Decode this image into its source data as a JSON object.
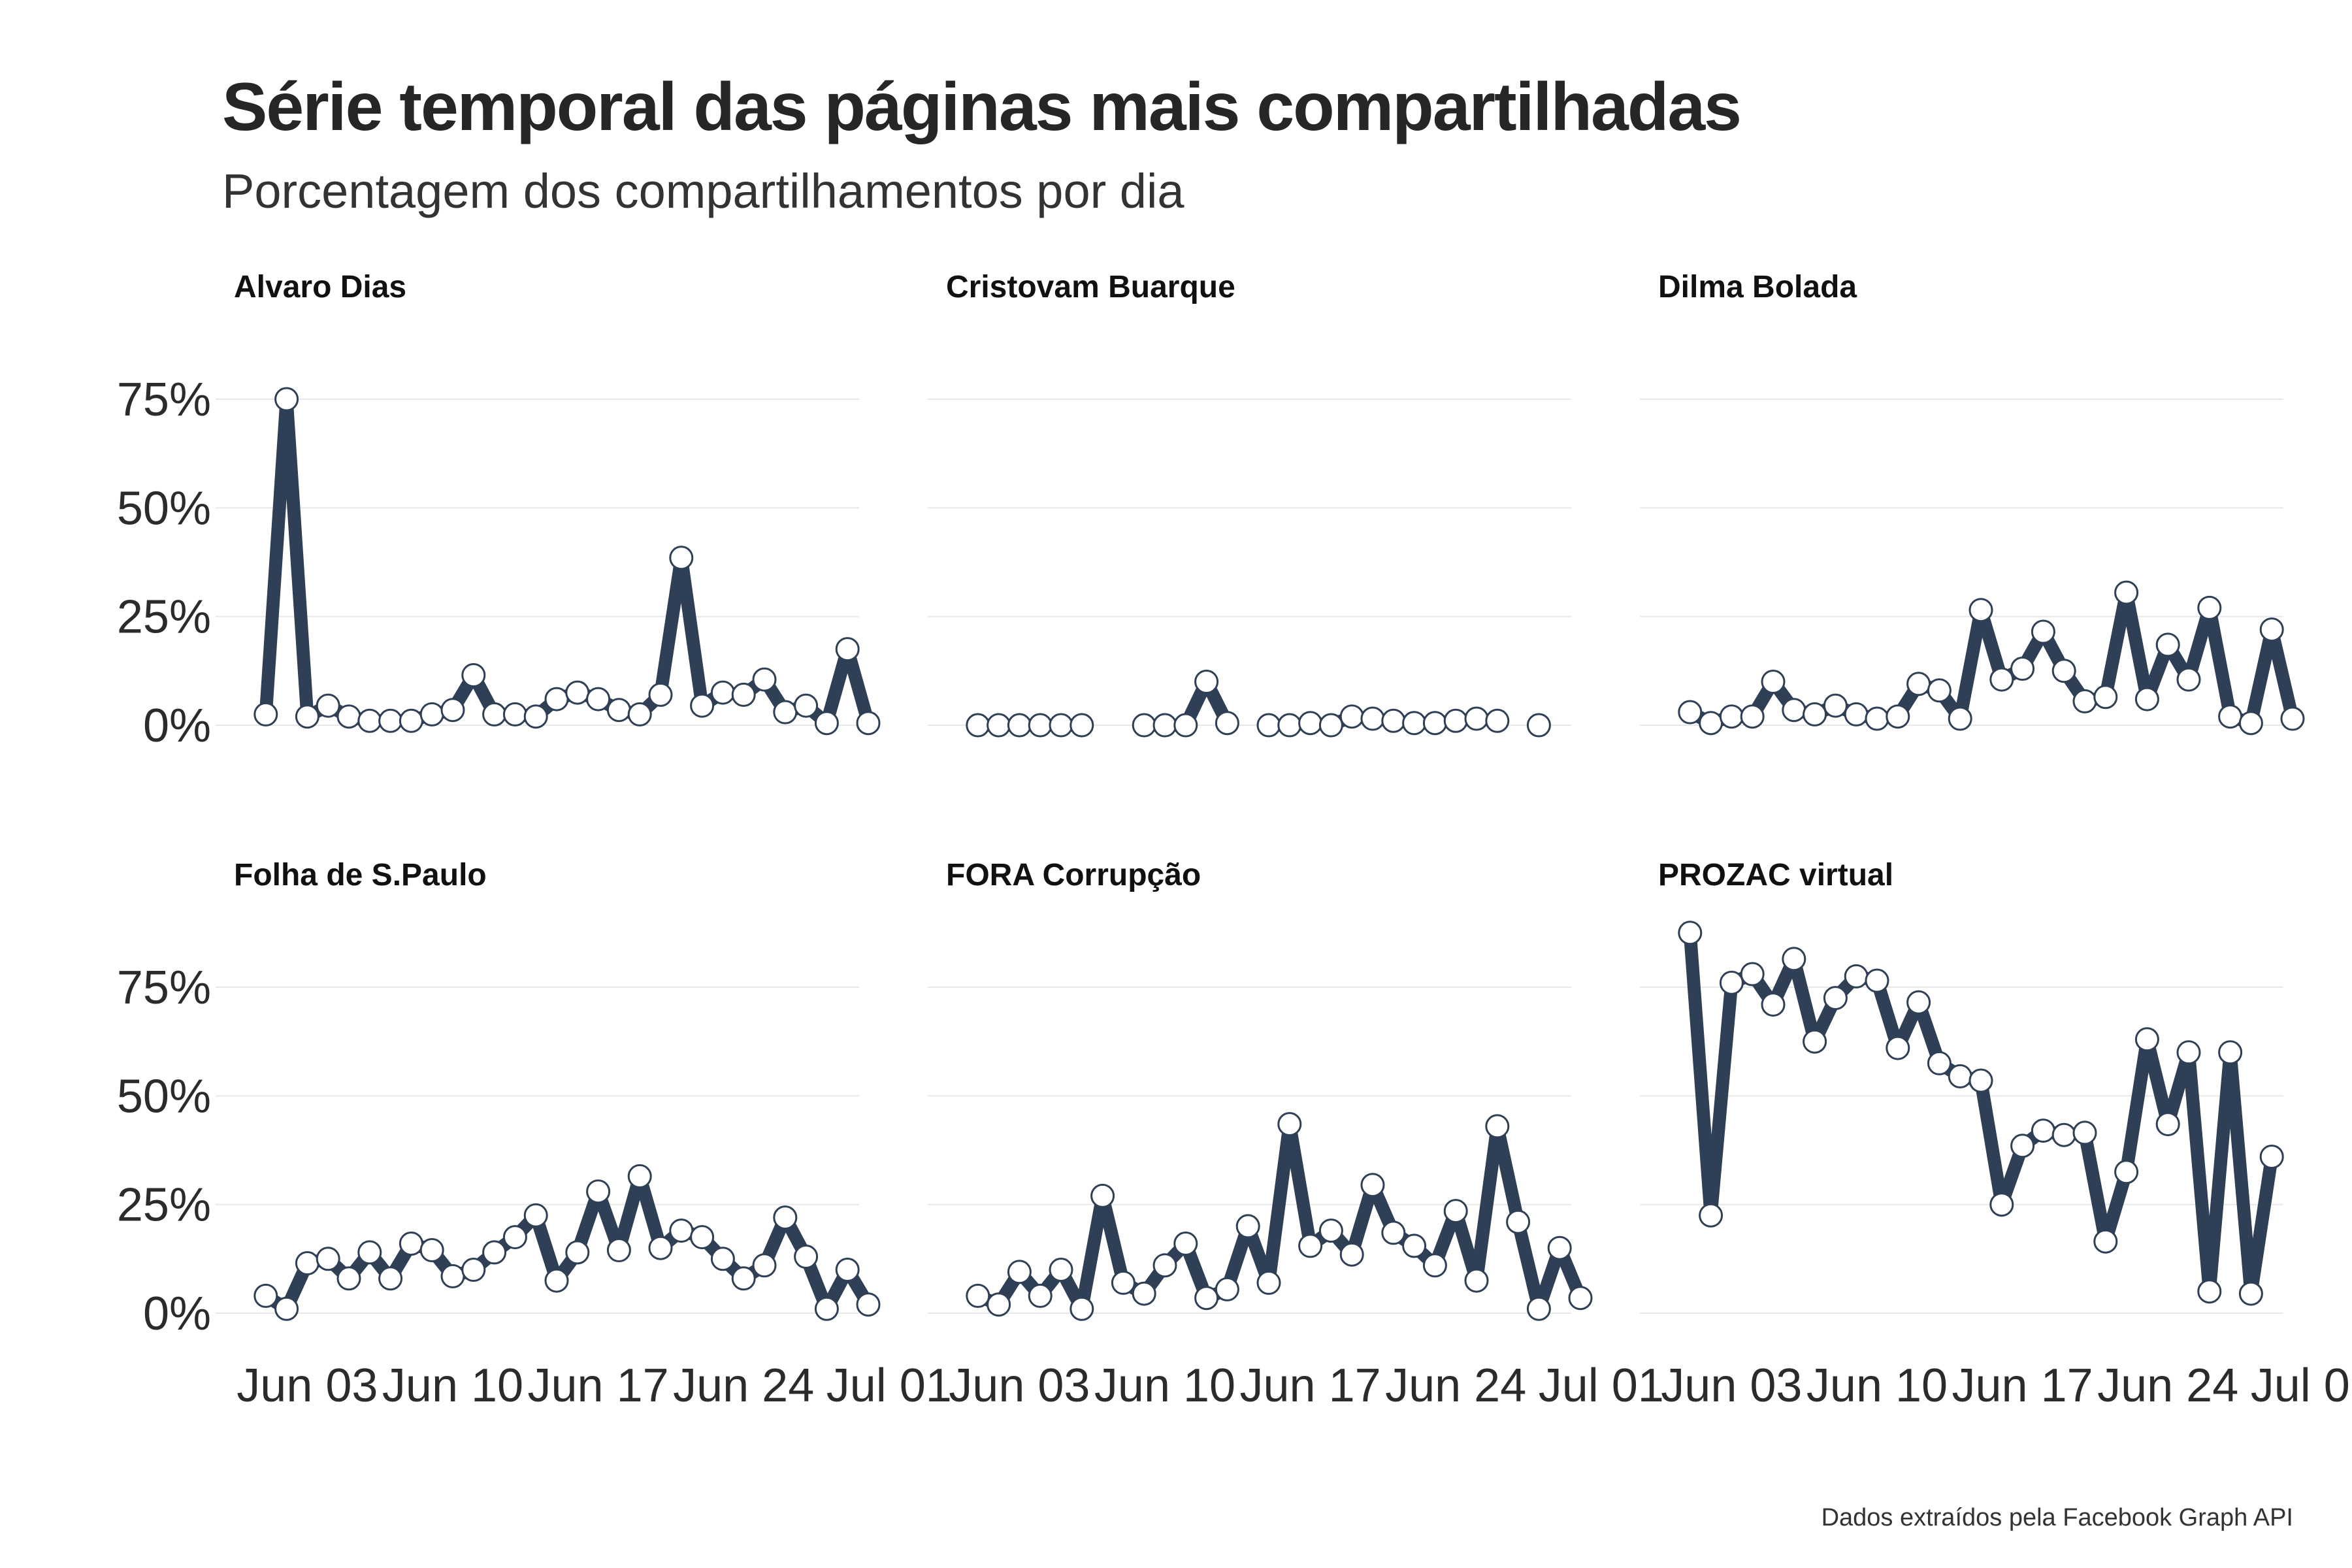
{
  "title": "Série temporal das páginas mais compartilhadas",
  "subtitle": "Porcentagem dos compartilhamentos por dia",
  "caption": "Dados extraídos pela Facebook Graph API",
  "colors": {
    "line": "#2f3f55",
    "point_fill": "#ffffff",
    "grid": "#e8e8e8"
  },
  "chart_data": {
    "type": "line",
    "x_start": "2018-05-31",
    "ylim": [
      0,
      0.9
    ],
    "y_ticks": [
      {
        "value": 0,
        "label": "0%"
      },
      {
        "value": 0.25,
        "label": "25%"
      },
      {
        "value": 0.5,
        "label": "50%"
      },
      {
        "value": 0.75,
        "label": "75%"
      }
    ],
    "x_ticks": [
      {
        "date": "2018-06-03",
        "label": "Jun 03"
      },
      {
        "date": "2018-06-10",
        "label": "Jun 10"
      },
      {
        "date": "2018-06-17",
        "label": "Jun 17"
      },
      {
        "date": "2018-06-24",
        "label": "Jun 24"
      },
      {
        "date": "2018-07-01",
        "label": "Jul 01"
      }
    ],
    "xlim": [
      "2018-05-31",
      "2018-07-02"
    ],
    "facets": [
      {
        "name": "Alvaro Dias",
        "points": [
          [
            "2018-06-01",
            0.025
          ],
          [
            "2018-06-02",
            0.75
          ],
          [
            "2018-06-03",
            0.02
          ],
          [
            "2018-06-04",
            0.045
          ],
          [
            "2018-06-05",
            0.02
          ],
          [
            "2018-06-06",
            0.01
          ],
          [
            "2018-06-07",
            0.01
          ],
          [
            "2018-06-08",
            0.01
          ],
          [
            "2018-06-09",
            0.025
          ],
          [
            "2018-06-10",
            0.035
          ],
          [
            "2018-06-11",
            0.115
          ],
          [
            "2018-06-12",
            0.025
          ],
          [
            "2018-06-13",
            0.025
          ],
          [
            "2018-06-14",
            0.02
          ],
          [
            "2018-06-15",
            0.06
          ],
          [
            "2018-06-16",
            0.075
          ],
          [
            "2018-06-17",
            0.06
          ],
          [
            "2018-06-18",
            0.035
          ],
          [
            "2018-06-19",
            0.025
          ],
          [
            "2018-06-20",
            0.07
          ],
          [
            "2018-06-21",
            0.385
          ],
          [
            "2018-06-22",
            0.045
          ],
          [
            "2018-06-23",
            0.075
          ],
          [
            "2018-06-24",
            0.07
          ],
          [
            "2018-06-25",
            0.105
          ],
          [
            "2018-06-26",
            0.03
          ],
          [
            "2018-06-27",
            0.045
          ],
          [
            "2018-06-28",
            0.005
          ],
          [
            "2018-06-29",
            0.175
          ],
          [
            "2018-06-30",
            0.005
          ]
        ]
      },
      {
        "name": "Cristovam Buarque",
        "points": [
          [
            "2018-06-01",
            0.0
          ],
          [
            "2018-06-02",
            0.0
          ],
          [
            "2018-06-03",
            0.0
          ],
          [
            "2018-06-04",
            0.0
          ],
          [
            "2018-06-05",
            0.0
          ],
          [
            "2018-06-06",
            0.0
          ],
          [
            "2018-06-09",
            0.0
          ],
          [
            "2018-06-10",
            0.0
          ],
          [
            "2018-06-11",
            0.0
          ],
          [
            "2018-06-12",
            0.1
          ],
          [
            "2018-06-13",
            0.005
          ],
          [
            "2018-06-15",
            0.0
          ],
          [
            "2018-06-16",
            0.0
          ],
          [
            "2018-06-17",
            0.005
          ],
          [
            "2018-06-18",
            0.0
          ],
          [
            "2018-06-19",
            0.02
          ],
          [
            "2018-06-20",
            0.015
          ],
          [
            "2018-06-21",
            0.01
          ],
          [
            "2018-06-22",
            0.005
          ],
          [
            "2018-06-23",
            0.005
          ],
          [
            "2018-06-24",
            0.01
          ],
          [
            "2018-06-25",
            0.015
          ],
          [
            "2018-06-26",
            0.01
          ],
          [
            "2018-06-28",
            0.0
          ]
        ]
      },
      {
        "name": "Dilma Bolada",
        "points": [
          [
            "2018-06-01",
            0.03
          ],
          [
            "2018-06-02",
            0.005
          ],
          [
            "2018-06-03",
            0.02
          ],
          [
            "2018-06-04",
            0.02
          ],
          [
            "2018-06-05",
            0.1
          ],
          [
            "2018-06-06",
            0.035
          ],
          [
            "2018-06-07",
            0.025
          ],
          [
            "2018-06-08",
            0.045
          ],
          [
            "2018-06-09",
            0.025
          ],
          [
            "2018-06-10",
            0.015
          ],
          [
            "2018-06-11",
            0.02
          ],
          [
            "2018-06-12",
            0.095
          ],
          [
            "2018-06-13",
            0.08
          ],
          [
            "2018-06-14",
            0.015
          ],
          [
            "2018-06-15",
            0.265
          ],
          [
            "2018-06-16",
            0.105
          ],
          [
            "2018-06-17",
            0.13
          ],
          [
            "2018-06-18",
            0.215
          ],
          [
            "2018-06-19",
            0.125
          ],
          [
            "2018-06-20",
            0.055
          ],
          [
            "2018-06-21",
            0.065
          ],
          [
            "2018-06-22",
            0.305
          ],
          [
            "2018-06-23",
            0.06
          ],
          [
            "2018-06-24",
            0.185
          ],
          [
            "2018-06-25",
            0.105
          ],
          [
            "2018-06-26",
            0.27
          ],
          [
            "2018-06-27",
            0.02
          ],
          [
            "2018-06-28",
            0.005
          ],
          [
            "2018-06-29",
            0.22
          ],
          [
            "2018-06-30",
            0.015
          ]
        ]
      },
      {
        "name": "Folha de S.Paulo",
        "points": [
          [
            "2018-06-01",
            0.04
          ],
          [
            "2018-06-02",
            0.01
          ],
          [
            "2018-06-03",
            0.115
          ],
          [
            "2018-06-04",
            0.125
          ],
          [
            "2018-06-05",
            0.08
          ],
          [
            "2018-06-06",
            0.14
          ],
          [
            "2018-06-07",
            0.08
          ],
          [
            "2018-06-08",
            0.16
          ],
          [
            "2018-06-09",
            0.145
          ],
          [
            "2018-06-10",
            0.085
          ],
          [
            "2018-06-11",
            0.1
          ],
          [
            "2018-06-12",
            0.14
          ],
          [
            "2018-06-13",
            0.175
          ],
          [
            "2018-06-14",
            0.225
          ],
          [
            "2018-06-15",
            0.075
          ],
          [
            "2018-06-16",
            0.14
          ],
          [
            "2018-06-17",
            0.28
          ],
          [
            "2018-06-18",
            0.145
          ],
          [
            "2018-06-19",
            0.315
          ],
          [
            "2018-06-20",
            0.15
          ],
          [
            "2018-06-21",
            0.19
          ],
          [
            "2018-06-22",
            0.175
          ],
          [
            "2018-06-23",
            0.125
          ],
          [
            "2018-06-24",
            0.08
          ],
          [
            "2018-06-25",
            0.11
          ],
          [
            "2018-06-26",
            0.22
          ],
          [
            "2018-06-27",
            0.13
          ],
          [
            "2018-06-28",
            0.01
          ],
          [
            "2018-06-29",
            0.1
          ],
          [
            "2018-06-30",
            0.02
          ]
        ]
      },
      {
        "name": "FORA Corrupção",
        "points": [
          [
            "2018-06-01",
            0.04
          ],
          [
            "2018-06-02",
            0.02
          ],
          [
            "2018-06-03",
            0.095
          ],
          [
            "2018-06-04",
            0.04
          ],
          [
            "2018-06-05",
            0.1
          ],
          [
            "2018-06-06",
            0.01
          ],
          [
            "2018-06-07",
            0.27
          ],
          [
            "2018-06-08",
            0.07
          ],
          [
            "2018-06-09",
            0.045
          ],
          [
            "2018-06-10",
            0.11
          ],
          [
            "2018-06-11",
            0.16
          ],
          [
            "2018-06-12",
            0.035
          ],
          [
            "2018-06-13",
            0.055
          ],
          [
            "2018-06-14",
            0.2
          ],
          [
            "2018-06-15",
            0.07
          ],
          [
            "2018-06-16",
            0.435
          ],
          [
            "2018-06-17",
            0.155
          ],
          [
            "2018-06-18",
            0.19
          ],
          [
            "2018-06-19",
            0.135
          ],
          [
            "2018-06-20",
            0.295
          ],
          [
            "2018-06-21",
            0.185
          ],
          [
            "2018-06-22",
            0.155
          ],
          [
            "2018-06-23",
            0.11
          ],
          [
            "2018-06-24",
            0.235
          ],
          [
            "2018-06-25",
            0.075
          ],
          [
            "2018-06-26",
            0.43
          ],
          [
            "2018-06-27",
            0.21
          ],
          [
            "2018-06-28",
            0.01
          ],
          [
            "2018-06-29",
            0.15
          ],
          [
            "2018-06-30",
            0.035
          ]
        ]
      },
      {
        "name": "PROZAC virtual",
        "points": [
          [
            "2018-06-01",
            0.875
          ],
          [
            "2018-06-02",
            0.225
          ],
          [
            "2018-06-03",
            0.76
          ],
          [
            "2018-06-04",
            0.78
          ],
          [
            "2018-06-05",
            0.71
          ],
          [
            "2018-06-06",
            0.815
          ],
          [
            "2018-06-07",
            0.625
          ],
          [
            "2018-06-08",
            0.725
          ],
          [
            "2018-06-09",
            0.775
          ],
          [
            "2018-06-10",
            0.765
          ],
          [
            "2018-06-11",
            0.61
          ],
          [
            "2018-06-12",
            0.715
          ],
          [
            "2018-06-13",
            0.575
          ],
          [
            "2018-06-14",
            0.545
          ],
          [
            "2018-06-15",
            0.535
          ],
          [
            "2018-06-16",
            0.25
          ],
          [
            "2018-06-17",
            0.385
          ],
          [
            "2018-06-18",
            0.42
          ],
          [
            "2018-06-19",
            0.41
          ],
          [
            "2018-06-20",
            0.415
          ],
          [
            "2018-06-21",
            0.165
          ],
          [
            "2018-06-22",
            0.325
          ],
          [
            "2018-06-23",
            0.63
          ],
          [
            "2018-06-24",
            0.435
          ],
          [
            "2018-06-25",
            0.6
          ],
          [
            "2018-06-26",
            0.05
          ],
          [
            "2018-06-27",
            0.6
          ],
          [
            "2018-06-28",
            0.045
          ],
          [
            "2018-06-29",
            0.36
          ]
        ]
      }
    ]
  }
}
